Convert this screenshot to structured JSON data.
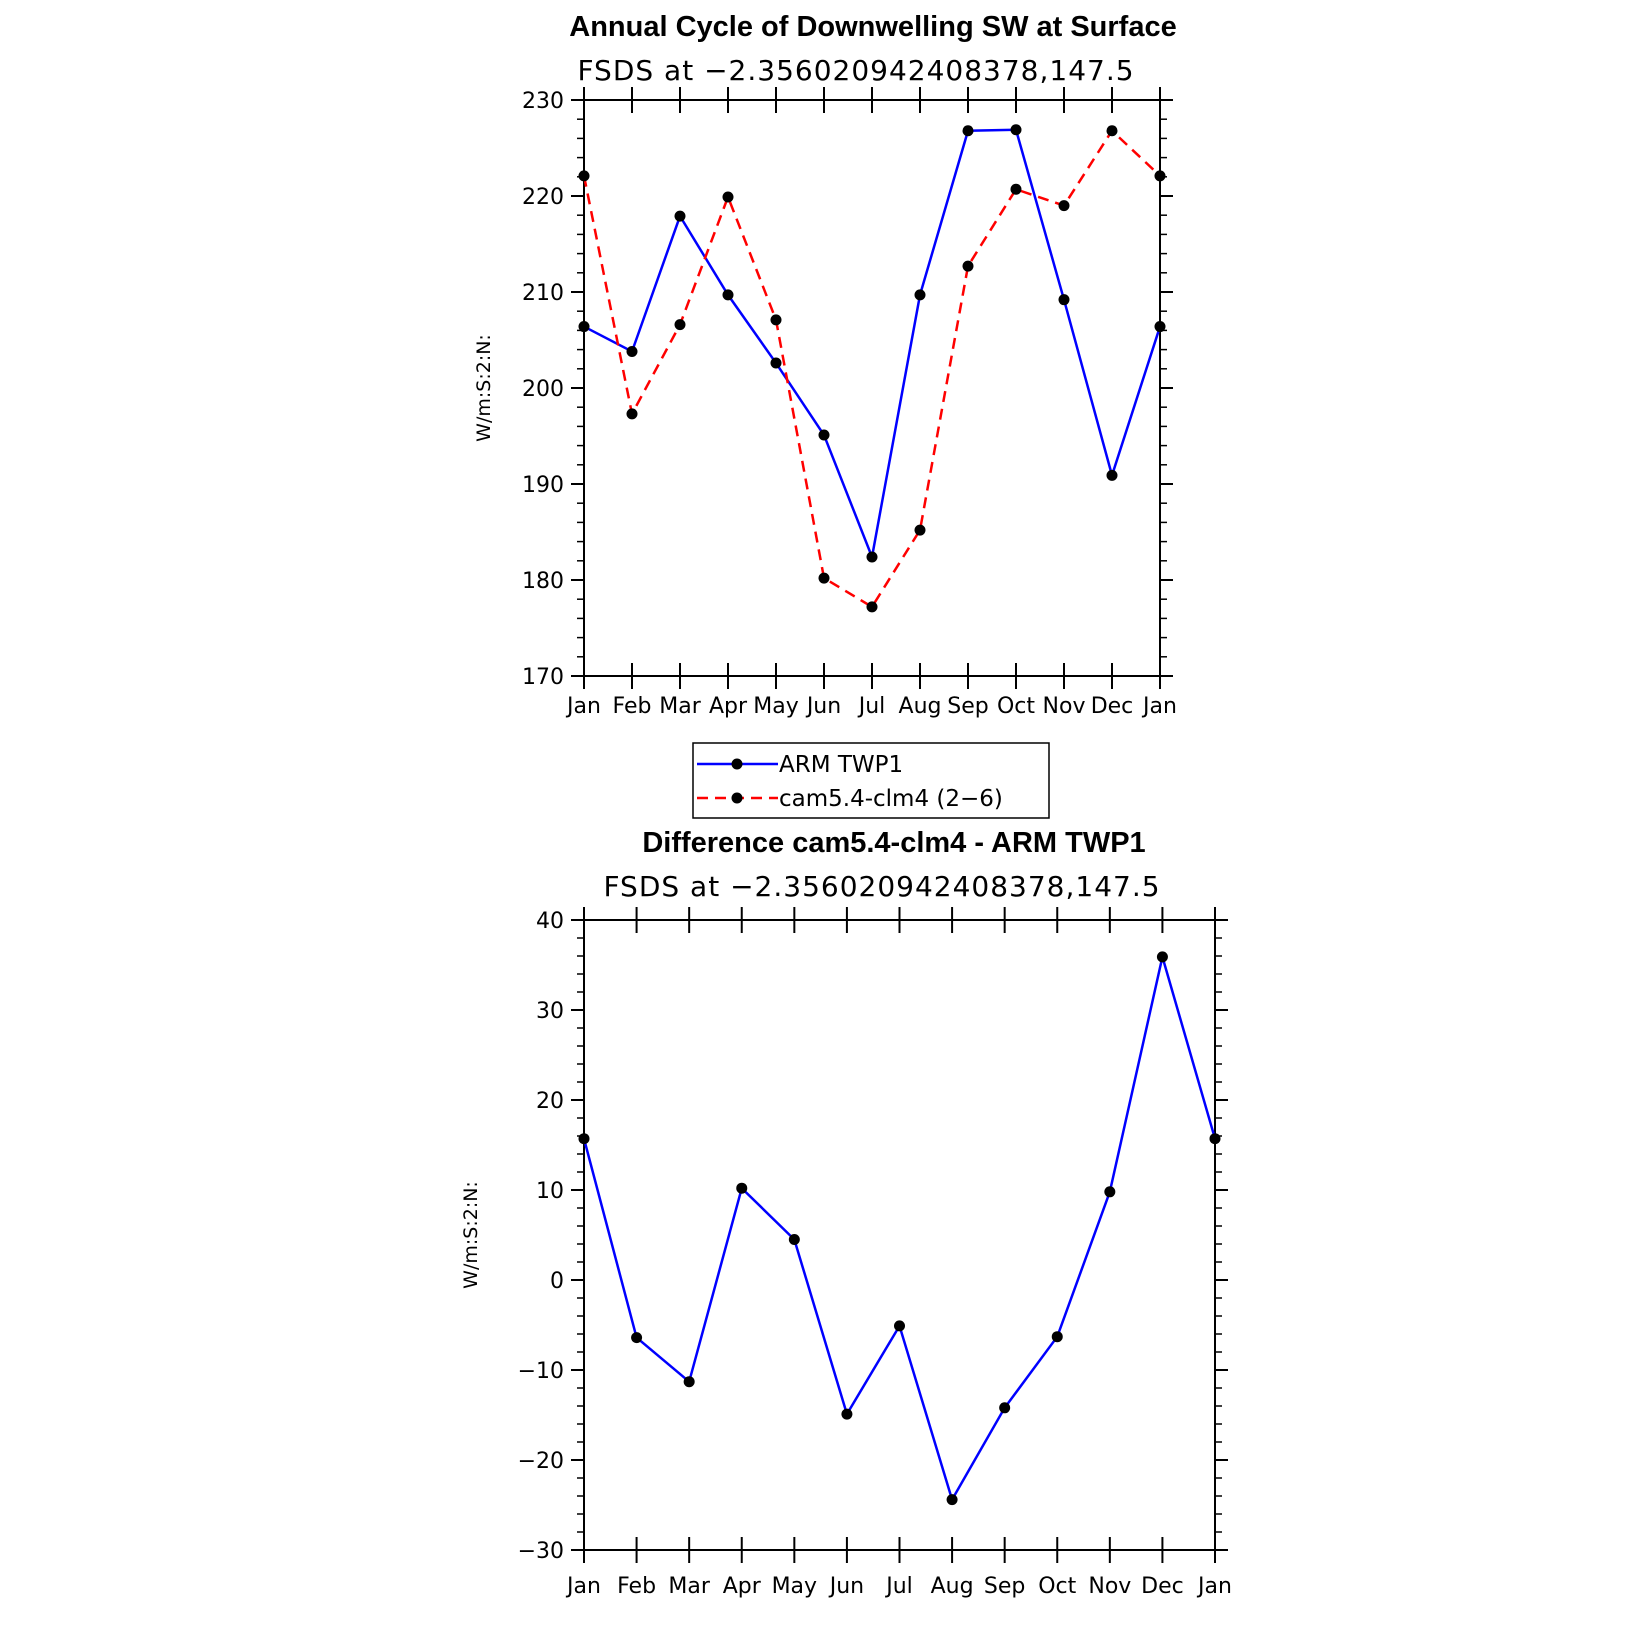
{
  "chart_data": [
    {
      "type": "line",
      "title": "Annual Cycle of Downwelling SW at Surface",
      "subtitle": "FSDS at −2.356020942408378,147.5",
      "ylabel": "W/m:S:2:N:",
      "xlabel": "",
      "categories": [
        "Jan",
        "Feb",
        "Mar",
        "Apr",
        "May",
        "Jun",
        "Jul",
        "Aug",
        "Sep",
        "Oct",
        "Nov",
        "Dec",
        "Jan"
      ],
      "ylim": [
        170,
        230
      ],
      "yticks": [
        170,
        180,
        190,
        200,
        210,
        220,
        230
      ],
      "ytick_labels": [
        "170",
        "180",
        "190",
        "200",
        "210",
        "220",
        "230"
      ],
      "series": [
        {
          "name": "ARM TWP1",
          "color": "#0000ff",
          "dash": "solid",
          "values": [
            206.4,
            203.8,
            217.9,
            209.7,
            202.6,
            195.1,
            182.4,
            209.7,
            226.8,
            226.9,
            209.2,
            190.9,
            206.4
          ]
        },
        {
          "name": "cam5.4-clm4 (2-6)",
          "color": "#ff0000",
          "dash": "dashed",
          "values": [
            222.1,
            197.3,
            206.6,
            219.9,
            207.1,
            180.2,
            177.2,
            185.2,
            212.7,
            220.7,
            219.0,
            226.8,
            222.1
          ]
        }
      ],
      "legend": {
        "position": "below",
        "entries": [
          "ARM TWP1",
          "cam5.4-clm4 (2−6)"
        ]
      },
      "grid": false
    },
    {
      "type": "line",
      "title": "Difference cam5.4-clm4 - ARM TWP1",
      "subtitle": "FSDS at −2.356020942408378,147.5",
      "ylabel": "W/m:S:2:N:",
      "xlabel": "",
      "categories": [
        "Jan",
        "Feb",
        "Mar",
        "Apr",
        "May",
        "Jun",
        "Jul",
        "Aug",
        "Sep",
        "Oct",
        "Nov",
        "Dec",
        "Jan"
      ],
      "ylim": [
        -30,
        40
      ],
      "yticks": [
        -30,
        -20,
        -10,
        0,
        10,
        20,
        30,
        40
      ],
      "ytick_labels": [
        "−30",
        "−20",
        "−10",
        "0",
        "10",
        "20",
        "30",
        "40"
      ],
      "series": [
        {
          "color": "#0000ff",
          "dash": "solid",
          "values": [
            15.7,
            -6.4,
            -11.3,
            10.2,
            4.5,
            -14.9,
            -5.1,
            -24.4,
            -14.2,
            -6.3,
            9.8,
            35.9,
            15.7
          ]
        }
      ],
      "grid": false
    }
  ]
}
